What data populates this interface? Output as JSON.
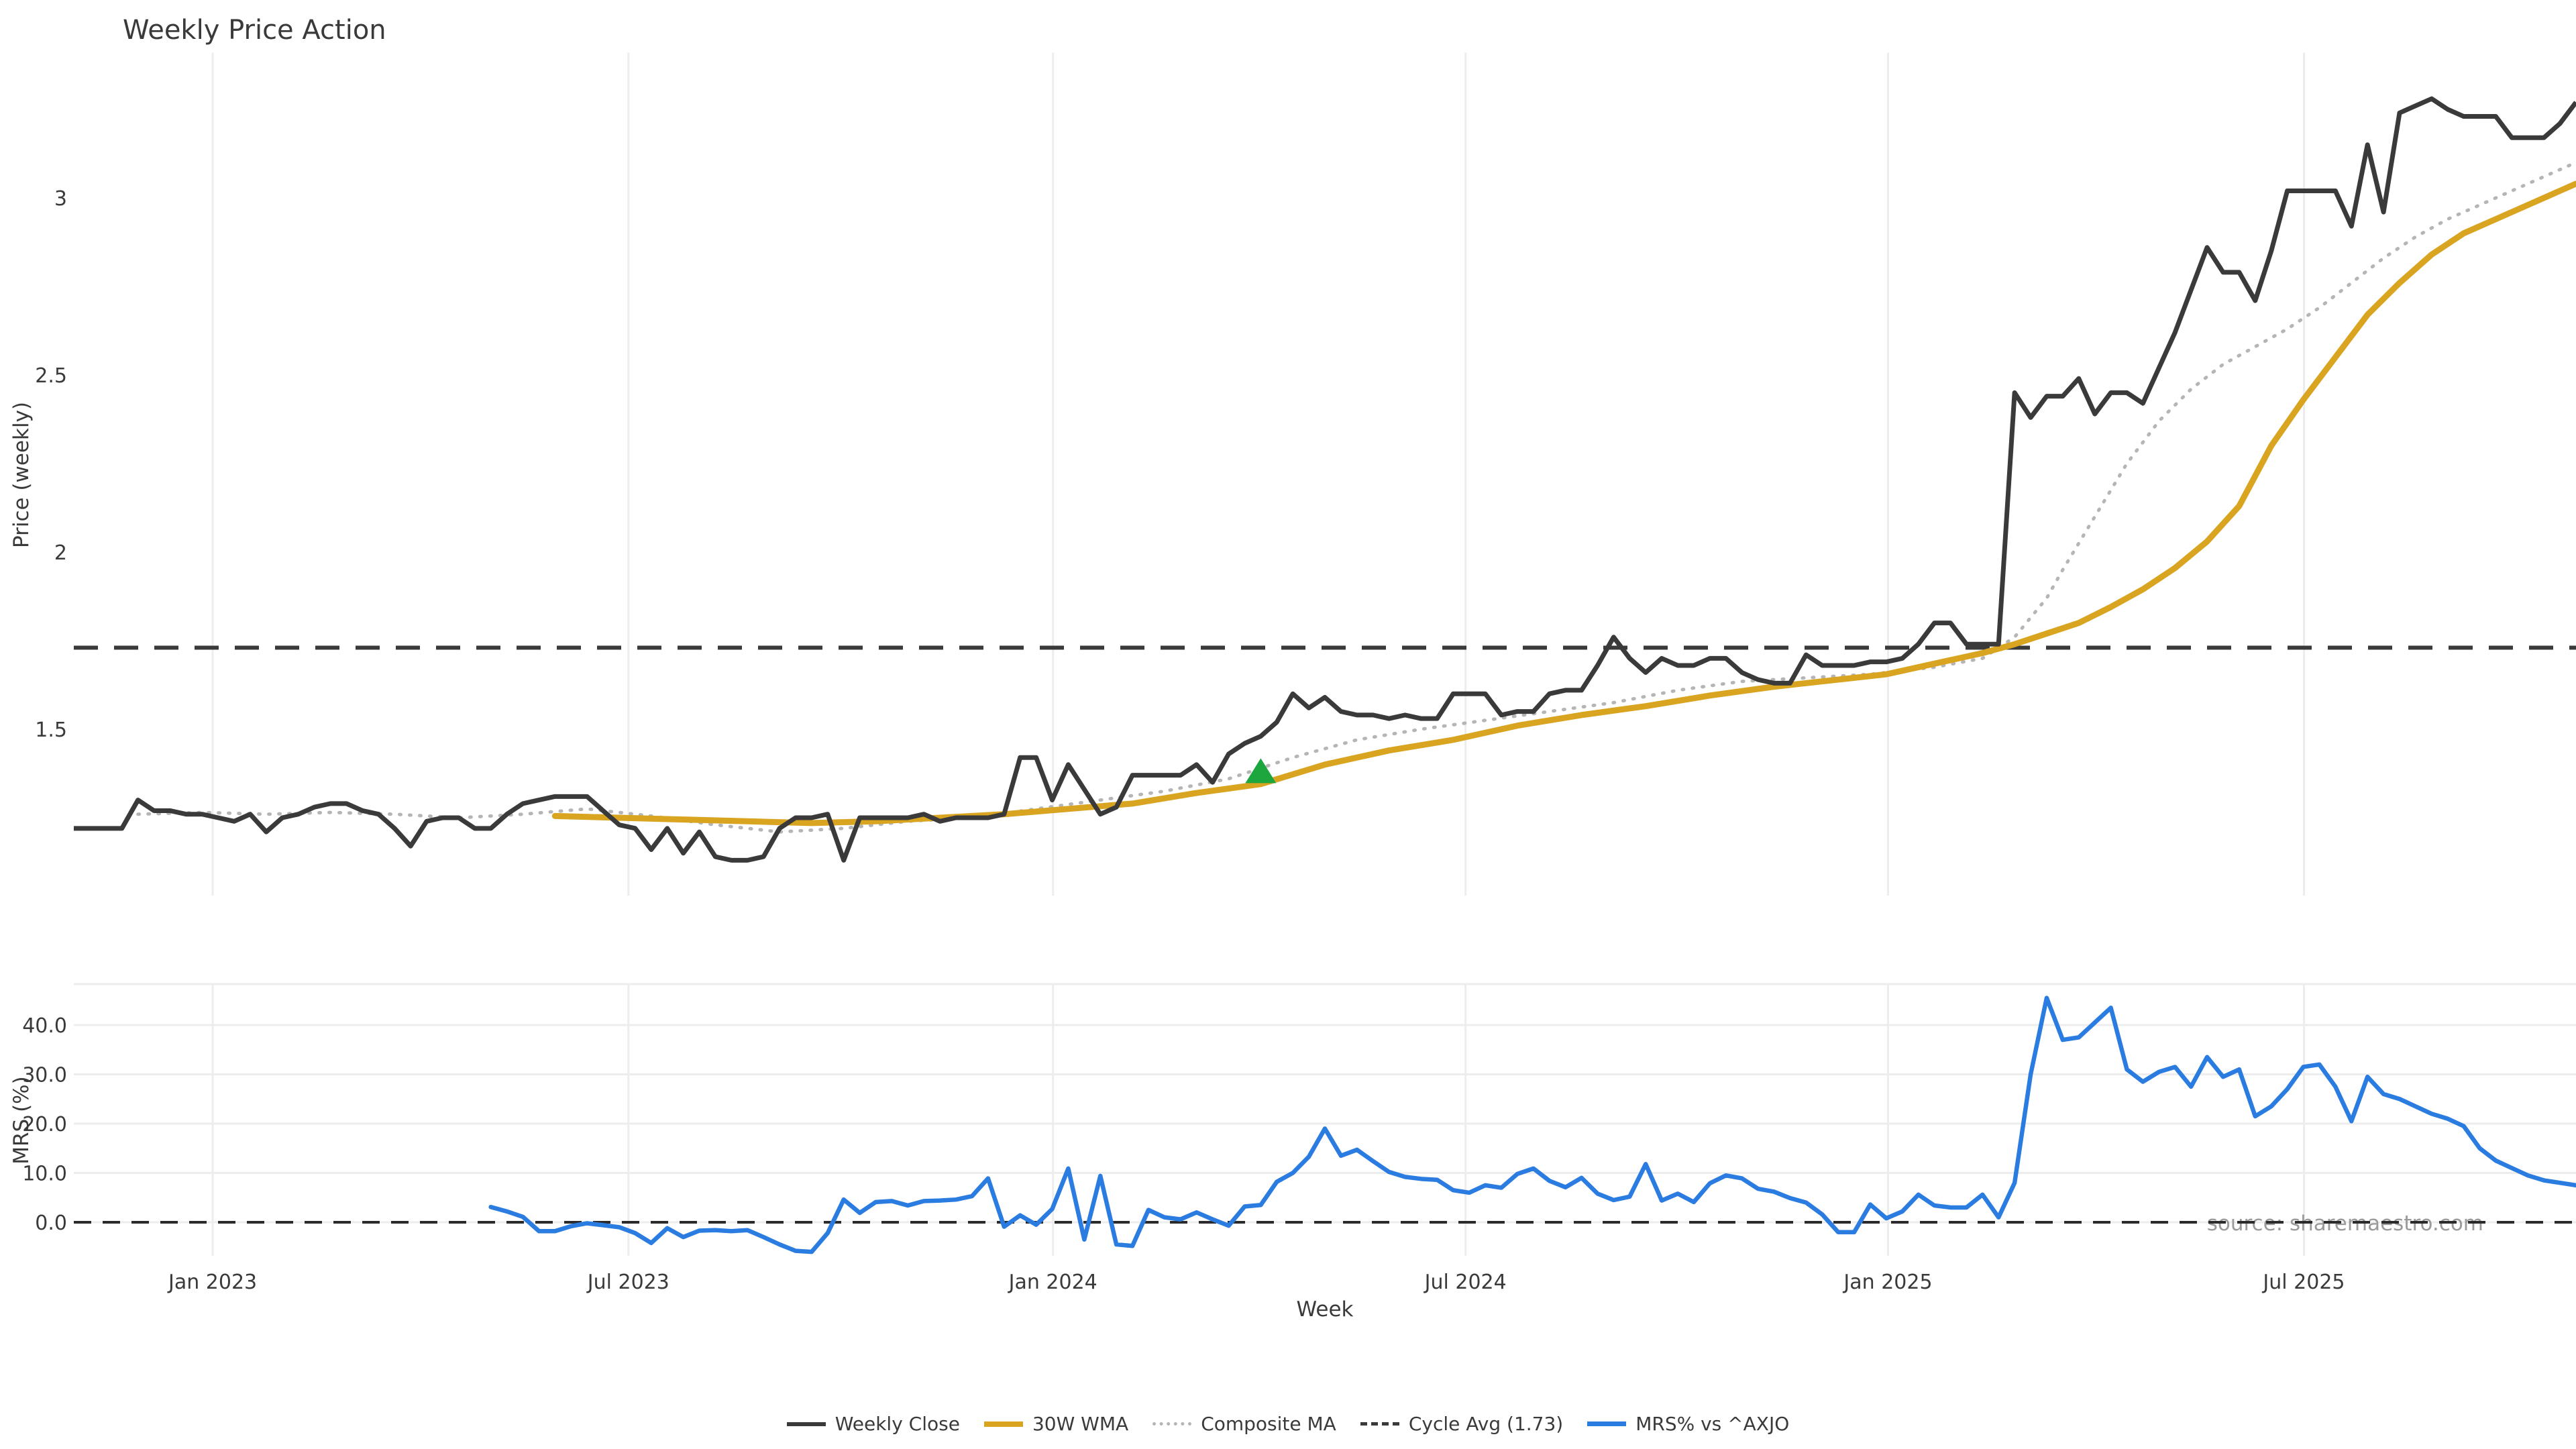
{
  "title": "Weekly Price Action",
  "source_note": "source: sharemaestro.com",
  "colors": {
    "weekly_close": "#3a3a3a",
    "wma": "#d9a41f",
    "composite_ma": "#b5b5b5",
    "cycle_avg": "#3a3a3a",
    "mrs_blue": "#2b7ce0",
    "signal_green": "#1da63d",
    "grid": "#ededed",
    "muted_text": "#9b9b9b"
  },
  "legend": [
    {
      "label": "Weekly Close",
      "style": "solid",
      "color": "#3a3a3a",
      "thickness": 6
    },
    {
      "label": "30W WMA",
      "style": "solid",
      "color": "#d9a41f",
      "thickness": 8
    },
    {
      "label": "Composite MA",
      "style": "dotted",
      "color": "#b5b5b5",
      "thickness": 5
    },
    {
      "label": "Cycle Avg (1.73)",
      "style": "dashed",
      "color": "#3a3a3a",
      "thickness": 5
    },
    {
      "label": "MRS% vs ^AXJO",
      "style": "solid",
      "color": "#2b7ce0",
      "thickness": 7
    }
  ],
  "chart_data": [
    {
      "type": "line",
      "panel": "price",
      "title": "Weekly Price Action",
      "xlabel": "Week",
      "ylabel": "Price (weekly)",
      "ylim": [
        1.03,
        3.41
      ],
      "yticks": [
        {
          "v": 1.5,
          "label": "1.5"
        },
        {
          "v": 2,
          "label": "2"
        },
        {
          "v": 2.5,
          "label": "2.5"
        },
        {
          "v": 3,
          "label": "3"
        }
      ],
      "xticks": [
        {
          "week": 8.66,
          "label": "Jan 2023"
        },
        {
          "week": 34.58,
          "label": "Jul 2023"
        },
        {
          "week": 61.05,
          "label": "Jan 2024"
        },
        {
          "week": 86.77,
          "label": "Jul 2024"
        },
        {
          "week": 113.11,
          "label": "Jan 2025"
        },
        {
          "week": 139.04,
          "label": "Jul 2025"
        }
      ],
      "grid": "vertical-only",
      "cycle_avg_value": 1.73,
      "series": [
        {
          "name": "Weekly Close",
          "style": "solid",
          "color": "#3a3a3a",
          "start_week": 0,
          "values": [
            1.22,
            1.22,
            1.22,
            1.22,
            1.3,
            1.27,
            1.27,
            1.26,
            1.26,
            1.25,
            1.24,
            1.26,
            1.21,
            1.25,
            1.26,
            1.28,
            1.29,
            1.29,
            1.27,
            1.26,
            1.22,
            1.17,
            1.24,
            1.25,
            1.25,
            1.22,
            1.22,
            1.26,
            1.29,
            1.3,
            1.31,
            1.31,
            1.31,
            1.27,
            1.23,
            1.22,
            1.16,
            1.22,
            1.15,
            1.21,
            1.14,
            1.13,
            1.13,
            1.14,
            1.22,
            1.25,
            1.25,
            1.26,
            1.13,
            1.25,
            1.25,
            1.25,
            1.25,
            1.26,
            1.24,
            1.25,
            1.25,
            1.25,
            1.26,
            1.42,
            1.42,
            1.3,
            1.4,
            1.33,
            1.26,
            1.28,
            1.37,
            1.37,
            1.37,
            1.37,
            1.4,
            1.35,
            1.43,
            1.46,
            1.48,
            1.52,
            1.6,
            1.56,
            1.59,
            1.55,
            1.54,
            1.54,
            1.53,
            1.54,
            1.53,
            1.53,
            1.6,
            1.6,
            1.6,
            1.54,
            1.55,
            1.55,
            1.6,
            1.61,
            1.61,
            1.68,
            1.76,
            1.7,
            1.66,
            1.7,
            1.68,
            1.68,
            1.7,
            1.7,
            1.66,
            1.64,
            1.63,
            1.63,
            1.71,
            1.68,
            1.68,
            1.68,
            1.69,
            1.69,
            1.7,
            1.74,
            1.8,
            1.8,
            1.74,
            1.74,
            1.74,
            2.45,
            2.38,
            2.44,
            2.44,
            2.49,
            2.39,
            2.45,
            2.45,
            2.42,
            2.52,
            2.62,
            2.74,
            2.86,
            2.79,
            2.79,
            2.71,
            2.85,
            3.02,
            3.02,
            3.02,
            3.02,
            2.92,
            3.15,
            2.96,
            3.24,
            3.26,
            3.28,
            3.25,
            3.23,
            3.23,
            3.23,
            3.17,
            3.17,
            3.17,
            3.21,
            3.27
          ]
        },
        {
          "name": "30W WMA",
          "style": "solid",
          "color": "#d9a41f",
          "points": [
            [
              30,
              1.255
            ],
            [
              34,
              1.25
            ],
            [
              38,
              1.245
            ],
            [
              42,
              1.24
            ],
            [
              46,
              1.235
            ],
            [
              50,
              1.24
            ],
            [
              54,
              1.25
            ],
            [
              58,
              1.26
            ],
            [
              62,
              1.275
            ],
            [
              66,
              1.29
            ],
            [
              70,
              1.32
            ],
            [
              74,
              1.345
            ],
            [
              78,
              1.4
            ],
            [
              82,
              1.44
            ],
            [
              86,
              1.47
            ],
            [
              90,
              1.51
            ],
            [
              94,
              1.54
            ],
            [
              98,
              1.565
            ],
            [
              102,
              1.595
            ],
            [
              106,
              1.62
            ],
            [
              110,
              1.64
            ],
            [
              113,
              1.655
            ],
            [
              116,
              1.685
            ],
            [
              119,
              1.715
            ],
            [
              121,
              1.74
            ],
            [
              123,
              1.77
            ],
            [
              125,
              1.8
            ],
            [
              127,
              1.845
            ],
            [
              129,
              1.895
            ],
            [
              131,
              1.955
            ],
            [
              133,
              2.03
            ],
            [
              135,
              2.13
            ],
            [
              137,
              2.3
            ],
            [
              139,
              2.43
            ],
            [
              141,
              2.55
            ],
            [
              143,
              2.67
            ],
            [
              145,
              2.76
            ],
            [
              147,
              2.84
            ],
            [
              149,
              2.9
            ],
            [
              151,
              2.94
            ],
            [
              153,
              2.98
            ],
            [
              155,
              3.02
            ],
            [
              156,
              3.04
            ]
          ]
        },
        {
          "name": "Composite MA",
          "style": "dotted",
          "color": "#b5b5b5",
          "points": [
            [
              4,
              1.26
            ],
            [
              8,
              1.265
            ],
            [
              12,
              1.26
            ],
            [
              16,
              1.265
            ],
            [
              20,
              1.26
            ],
            [
              24,
              1.25
            ],
            [
              28,
              1.26
            ],
            [
              32,
              1.275
            ],
            [
              36,
              1.255
            ],
            [
              40,
              1.23
            ],
            [
              44,
              1.21
            ],
            [
              48,
              1.22
            ],
            [
              52,
              1.24
            ],
            [
              56,
              1.25
            ],
            [
              60,
              1.275
            ],
            [
              64,
              1.3
            ],
            [
              68,
              1.325
            ],
            [
              72,
              1.36
            ],
            [
              76,
              1.42
            ],
            [
              80,
              1.47
            ],
            [
              84,
              1.5
            ],
            [
              88,
              1.525
            ],
            [
              92,
              1.55
            ],
            [
              96,
              1.575
            ],
            [
              100,
              1.61
            ],
            [
              104,
              1.635
            ],
            [
              108,
              1.645
            ],
            [
              112,
              1.655
            ],
            [
              116,
              1.675
            ],
            [
              119,
              1.7
            ],
            [
              121,
              1.76
            ],
            [
              123,
              1.87
            ],
            [
              124,
              1.95
            ],
            [
              126,
              2.1
            ],
            [
              128,
              2.25
            ],
            [
              130,
              2.37
            ],
            [
              132,
              2.46
            ],
            [
              134,
              2.53
            ],
            [
              136,
              2.58
            ],
            [
              138,
              2.63
            ],
            [
              140,
              2.69
            ],
            [
              142,
              2.76
            ],
            [
              144,
              2.83
            ],
            [
              146,
              2.89
            ],
            [
              148,
              2.94
            ],
            [
              150,
              2.98
            ],
            [
              152,
              3.02
            ],
            [
              154,
              3.06
            ],
            [
              156,
              3.1
            ]
          ]
        }
      ],
      "markers": [
        {
          "name": "buy-signal",
          "shape": "triangle-up",
          "week": 74,
          "value": 1.38,
          "color": "#1da63d"
        }
      ]
    },
    {
      "type": "line",
      "panel": "mrs",
      "ylabel": "MRS (%)",
      "ylim": [
        -6.8,
        48.3
      ],
      "yticks": [
        {
          "v": 0,
          "label": "0.0"
        },
        {
          "v": 10,
          "label": "10.0"
        },
        {
          "v": 20,
          "label": "20.0"
        },
        {
          "v": 30,
          "label": "30.0"
        },
        {
          "v": 40,
          "label": "40.0"
        }
      ],
      "zero_line": 0,
      "grid": "both",
      "series": [
        {
          "name": "MRS% vs ^AXJO",
          "style": "solid",
          "color": "#2b7ce0",
          "start_week": 26,
          "values": [
            3.1,
            2.2,
            1.1,
            -1.8,
            -1.8,
            -0.8,
            -0.2,
            -0.6,
            -1.0,
            -2.2,
            -4.2,
            -1.2,
            -3.0,
            -1.7,
            -1.6,
            -1.8,
            -1.6,
            -3.0,
            -4.5,
            -5.8,
            -6.0,
            -2.2,
            4.6,
            1.9,
            4.1,
            4.3,
            3.4,
            4.3,
            4.4,
            4.6,
            5.3,
            8.9,
            -0.9,
            1.4,
            -0.5,
            2.7,
            10.9,
            -3.5,
            9.4,
            -4.5,
            -4.8,
            2.5,
            1.0,
            0.6,
            2.0,
            0.6,
            -0.7,
            3.2,
            3.5,
            8.2,
            10.0,
            13.3,
            19.0,
            13.5,
            14.7,
            12.4,
            10.2,
            9.2,
            8.8,
            8.6,
            6.5,
            6.0,
            7.5,
            7.0,
            9.8,
            10.9,
            8.4,
            7.1,
            9.0,
            5.8,
            4.5,
            5.2,
            11.8,
            4.4,
            5.8,
            4.1,
            7.9,
            9.5,
            8.9,
            6.8,
            6.2,
            4.9,
            4.0,
            1.6,
            -2.0,
            -2.0,
            3.6,
            0.8,
            2.2,
            5.6,
            3.4,
            3.0,
            3.0,
            5.6,
            1.0,
            8.0,
            30.0,
            45.5,
            37.0,
            37.5,
            40.5,
            43.5,
            31.0,
            28.5,
            30.5,
            31.5,
            27.5,
            33.5,
            29.5,
            31.0,
            21.5,
            23.5,
            27.0,
            31.5,
            32.0,
            27.5,
            20.5,
            29.5,
            26.0,
            25.0,
            23.5,
            22.0,
            21.0,
            19.5,
            15.0,
            12.5,
            11.0,
            9.5,
            8.5,
            8.0,
            7.5
          ]
        }
      ]
    }
  ]
}
